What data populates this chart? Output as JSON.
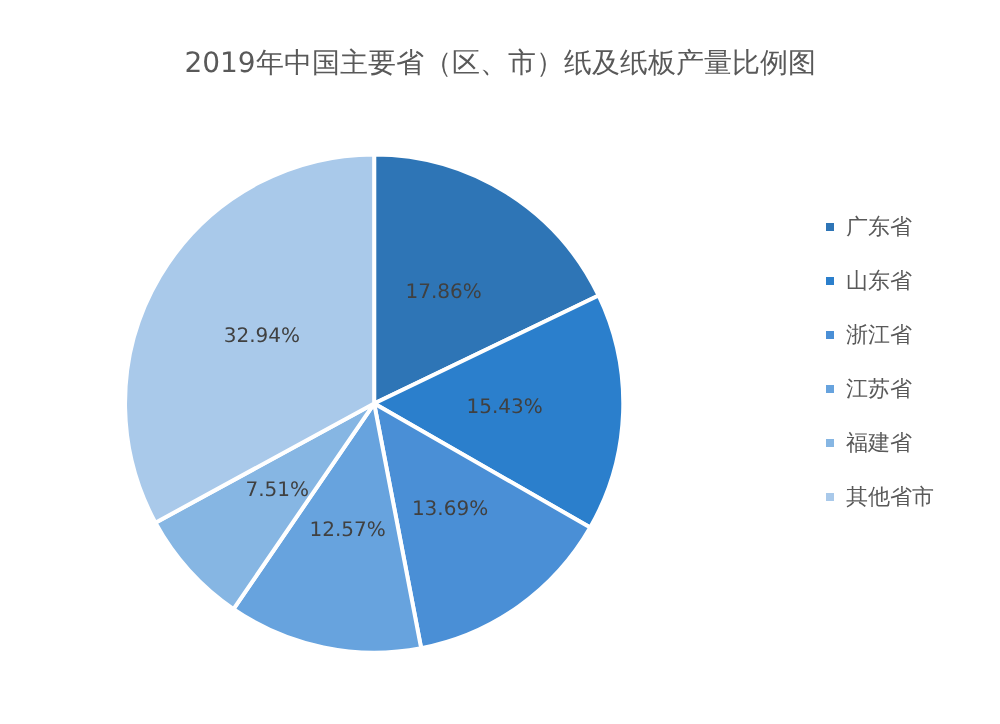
{
  "chart_data": {
    "type": "pie",
    "title": "2019年中国主要省（区、市）纸及纸板产量比例图",
    "categories": [
      "广东省",
      "山东省",
      "浙江省",
      "江苏省",
      "福建省",
      "其他省市"
    ],
    "values": [
      17.86,
      15.43,
      13.69,
      12.57,
      7.51,
      32.94
    ],
    "value_labels": [
      "17.86%",
      "15.43%",
      "13.69%",
      "12.57%",
      "7.51%",
      "32.94%"
    ],
    "colors": [
      "#2e75b6",
      "#2b7fcc",
      "#4a8fd6",
      "#67a3de",
      "#86b6e3",
      "#a9c9ea"
    ],
    "legend": "right"
  }
}
